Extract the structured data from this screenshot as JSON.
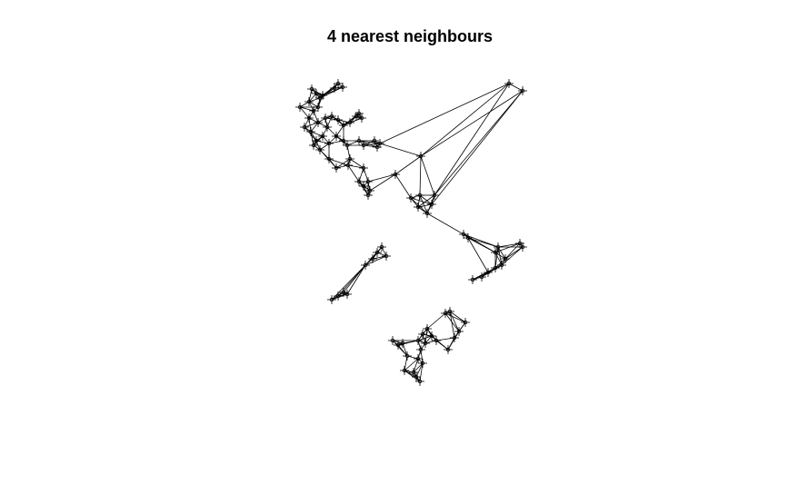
{
  "chart_data": {
    "type": "knn",
    "title": "4 nearest neighbours",
    "k": 4,
    "color": "#000000",
    "xlim": [
      0,
      300
    ],
    "ylim": [
      0,
      360
    ],
    "x": [
      43,
      48,
      52,
      40,
      55,
      72,
      77,
      68,
      30,
      45,
      50,
      40,
      35,
      42,
      50,
      58,
      65,
      72,
      78,
      85,
      60,
      55,
      48,
      62,
      70,
      78,
      82,
      45,
      52,
      95,
      98,
      92,
      95,
      100,
      112,
      118,
      115,
      62,
      70,
      85,
      83,
      100,
      105,
      100,
      107,
      105,
      95,
      135,
      163,
      260,
      275,
      152,
      160,
      170,
      178,
      175,
      162,
      120,
      115,
      125,
      110,
      102,
      65,
      72,
      78,
      82,
      210,
      215,
      248,
      245,
      272,
      275,
      256,
      252,
      245,
      237,
      220,
      230,
      190,
      195,
      212,
      205,
      200,
      193,
      170,
      165,
      175,
      160,
      168,
      163,
      132,
      138,
      143,
      148,
      160,
      165,
      155,
      145,
      162,
      158,
      180
    ],
    "y": [
      342,
      337,
      332,
      328,
      335,
      348,
      344,
      343,
      322,
      318,
      322,
      310,
      300,
      295,
      305,
      310,
      312,
      308,
      302,
      305,
      300,
      290,
      285,
      282,
      290,
      285,
      280,
      280,
      275,
      315,
      310,
      312,
      285,
      280,
      285,
      282,
      278,
      265,
      255,
      265,
      258,
      255,
      240,
      235,
      230,
      225,
      240,
      248,
      268,
      348,
      340,
      222,
      212,
      205,
      225,
      215,
      225,
      168,
      162,
      158,
      155,
      148,
      110,
      114,
      118,
      116,
      182,
      178,
      168,
      162,
      172,
      168,
      155,
      148,
      145,
      140,
      132,
      135,
      95,
      97,
      85,
      75,
      68,
      55,
      78,
      72,
      70,
      65,
      62,
      55,
      65,
      60,
      62,
      48,
      45,
      40,
      30,
      32,
      20,
      25,
      65
    ]
  }
}
